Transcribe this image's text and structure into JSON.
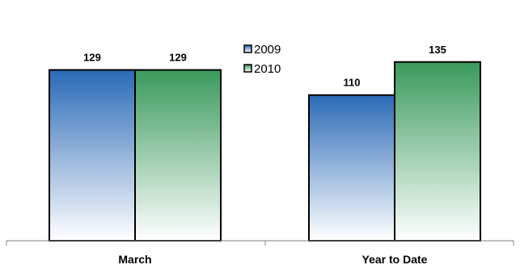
{
  "chart_data": {
    "type": "bar",
    "categories": [
      "March",
      "Year to Date"
    ],
    "series": [
      {
        "name": "2009",
        "values": [
          129,
          110
        ],
        "color": "#2a6ab6"
      },
      {
        "name": "2010",
        "values": [
          129,
          135
        ],
        "color": "#3a9a5c"
      }
    ],
    "ylim": [
      0,
      180
    ],
    "grid": false,
    "legend": "top-center",
    "data_labels": true
  }
}
